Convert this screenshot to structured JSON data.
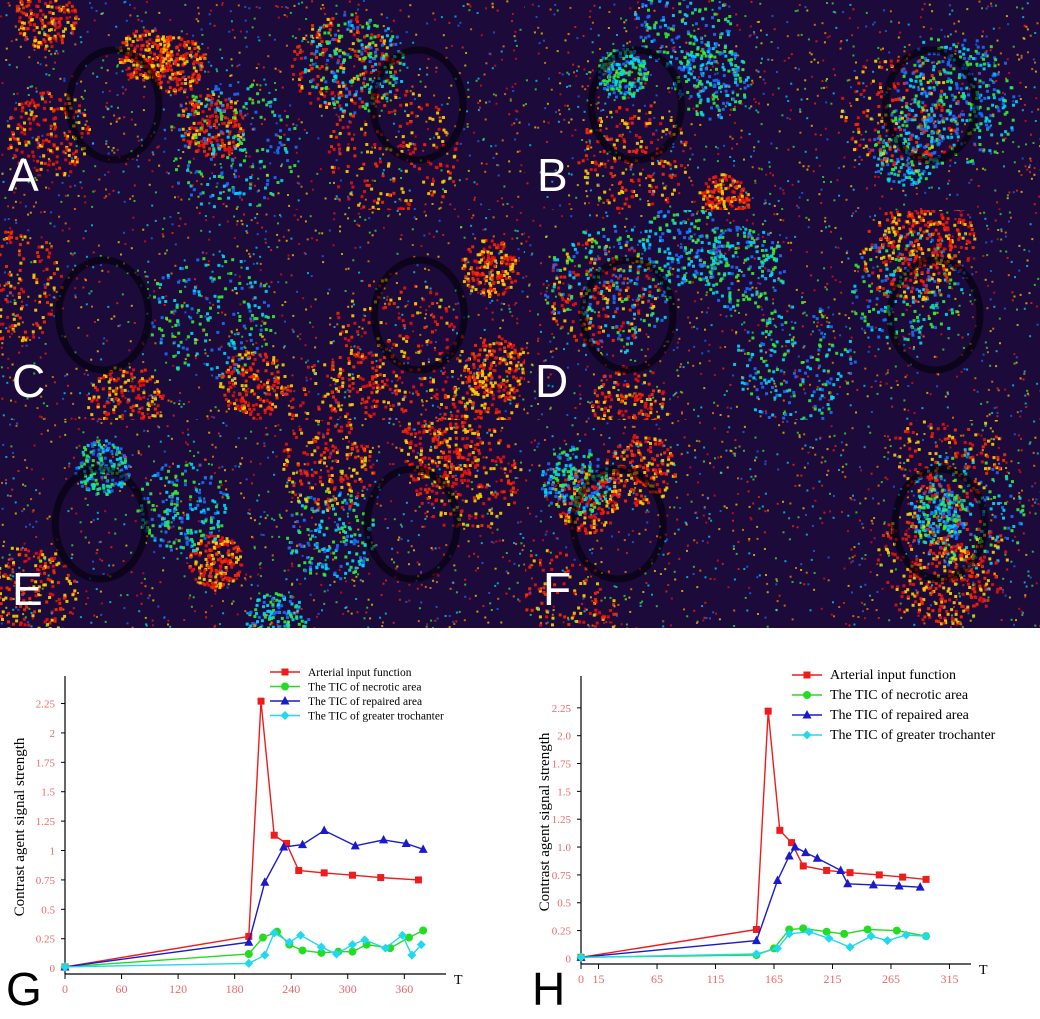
{
  "panels": [
    {
      "label": "A"
    },
    {
      "label": "B"
    },
    {
      "label": "C"
    },
    {
      "label": "D"
    },
    {
      "label": "E"
    },
    {
      "label": "F"
    }
  ],
  "colors": {
    "arterial": "#ee1c1c",
    "necrotic": "#22dd22",
    "repaired": "#1a1acc",
    "trochanter": "#22d8ee",
    "tick_text": "#ee6666",
    "heat_bg": "#1c0a3a"
  },
  "chart_data": [
    {
      "panel_label": "G",
      "type": "line",
      "xlabel": "T",
      "ylabel": "Contrast agent signal strength",
      "xlim": [
        0,
        400
      ],
      "ylim": [
        -0.05,
        2.45
      ],
      "xticks": [
        0,
        60,
        120,
        180,
        240,
        300,
        360
      ],
      "xtick_labels": [
        "0",
        "60",
        "120",
        "180",
        "240",
        "300",
        "360"
      ],
      "yticks": [
        0,
        0.25,
        0.5,
        0.75,
        1,
        1.25,
        1.5,
        1.75,
        2,
        2.25
      ],
      "ytick_labels": [
        "0",
        "0.25",
        "0.5",
        "0.75",
        "1",
        "1.25",
        "1.5",
        "1.75",
        "2",
        "2.25"
      ],
      "series": [
        {
          "name": "Arterial input function",
          "color_key": "arterial",
          "marker": "square",
          "x": [
            0,
            195,
            208,
            222,
            235,
            248,
            275,
            305,
            335,
            375
          ],
          "y": [
            0.01,
            0.27,
            2.27,
            1.13,
            1.06,
            0.83,
            0.81,
            0.79,
            0.77,
            0.75
          ]
        },
        {
          "name": "The TIC of necrotic area",
          "color_key": "necrotic",
          "marker": "circle",
          "x": [
            0,
            195,
            210,
            225,
            238,
            252,
            272,
            290,
            305,
            320,
            345,
            365,
            380
          ],
          "y": [
            0.01,
            0.12,
            0.26,
            0.31,
            0.2,
            0.15,
            0.13,
            0.14,
            0.14,
            0.2,
            0.17,
            0.26,
            0.32
          ]
        },
        {
          "name": "The TIC of repaired area",
          "color_key": "repaired",
          "marker": "triangle",
          "x": [
            0,
            195,
            212,
            232,
            252,
            275,
            308,
            338,
            362,
            380
          ],
          "y": [
            0.01,
            0.22,
            0.73,
            1.03,
            1.05,
            1.17,
            1.04,
            1.09,
            1.06,
            1.01
          ]
        },
        {
          "name": "The TIC of greater trochanter",
          "color_key": "trochanter",
          "marker": "diamond",
          "x": [
            0,
            195,
            212,
            222,
            238,
            250,
            272,
            288,
            305,
            318,
            340,
            358,
            368,
            378
          ],
          "y": [
            0.01,
            0.04,
            0.11,
            0.3,
            0.22,
            0.28,
            0.18,
            0.12,
            0.2,
            0.24,
            0.17,
            0.28,
            0.11,
            0.2
          ]
        }
      ]
    },
    {
      "panel_label": "H",
      "type": "line",
      "xlabel": "T",
      "ylabel": "Contrast agent signal strength",
      "xlim": [
        0,
        330
      ],
      "ylim": [
        -0.05,
        2.5
      ],
      "xticks": [
        0,
        15,
        65,
        115,
        165,
        215,
        265,
        315
      ],
      "xtick_labels": [
        "0",
        "15",
        "65",
        "115",
        "165",
        "215",
        "265",
        "315"
      ],
      "yticks": [
        0,
        0.25,
        0.5,
        0.75,
        1.0,
        1.25,
        1.5,
        1.75,
        2.0,
        2.25
      ],
      "ytick_labels": [
        "0",
        "0.25",
        "0.5",
        "0.75",
        "1.0",
        "1.25",
        "1.5",
        "1.75",
        "2.0",
        "2.25"
      ],
      "series": [
        {
          "name": "Arterial input function",
          "color_key": "arterial",
          "marker": "square",
          "x": [
            0,
            150,
            160,
            170,
            180,
            190,
            210,
            230,
            255,
            275,
            295
          ],
          "y": [
            0.01,
            0.26,
            2.22,
            1.15,
            1.04,
            0.83,
            0.79,
            0.77,
            0.75,
            0.73,
            0.71
          ]
        },
        {
          "name": "The TIC of necrotic area",
          "color_key": "necrotic",
          "marker": "circle",
          "x": [
            0,
            150,
            165,
            178,
            190,
            210,
            225,
            245,
            270,
            295
          ],
          "y": [
            0.01,
            0.03,
            0.09,
            0.26,
            0.27,
            0.24,
            0.22,
            0.26,
            0.25,
            0.2
          ]
        },
        {
          "name": "The TIC of repaired area",
          "color_key": "repaired",
          "marker": "triangle",
          "x": [
            0,
            150,
            168,
            178,
            183,
            192,
            202,
            222,
            228,
            250,
            272,
            290
          ],
          "y": [
            0.01,
            0.16,
            0.7,
            0.92,
            1.0,
            0.95,
            0.9,
            0.79,
            0.67,
            0.66,
            0.65,
            0.64
          ]
        },
        {
          "name": "The TIC of greater trochanter",
          "color_key": "trochanter",
          "marker": "diamond",
          "x": [
            0,
            150,
            168,
            178,
            195,
            212,
            230,
            248,
            262,
            278,
            295
          ],
          "y": [
            0.01,
            0.04,
            0.09,
            0.22,
            0.24,
            0.18,
            0.1,
            0.2,
            0.16,
            0.21,
            0.2
          ]
        }
      ]
    }
  ]
}
